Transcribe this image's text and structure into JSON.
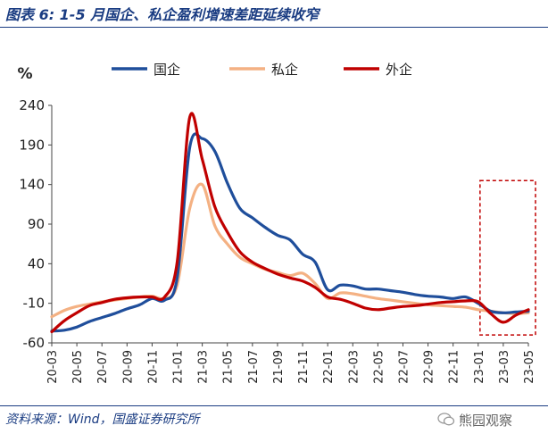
{
  "header": {
    "title": "图表 6: 1-5 月国企、私企盈利增速差距延续收窄"
  },
  "footer": {
    "source": "资料来源：Wind，国盛证券研究所",
    "watermark": "熊园观察"
  },
  "chart_data": {
    "type": "line",
    "ylabel": "%",
    "ylim": [
      -60,
      240
    ],
    "yticks": [
      -60,
      -10,
      40,
      90,
      140,
      190,
      240
    ],
    "xticks": [
      "20-03",
      "20-05",
      "20-07",
      "20-09",
      "20-11",
      "21-01",
      "21-03",
      "21-05",
      "21-07",
      "21-09",
      "21-11",
      "22-01",
      "22-03",
      "22-05",
      "22-07",
      "22-09",
      "22-11",
      "23-01",
      "23-03",
      "23-05"
    ],
    "legend_position": "top",
    "highlight_box": {
      "from": "23-02",
      "to": "23-05",
      "style": "dashed",
      "color": "#c00000"
    },
    "series": [
      {
        "name": "国企",
        "color": "#1f4e9b",
        "points": [
          [
            "20-03",
            -45
          ],
          [
            "20-04",
            -44
          ],
          [
            "20-05",
            -40
          ],
          [
            "20-06",
            -33
          ],
          [
            "20-07",
            -28
          ],
          [
            "20-08",
            -23
          ],
          [
            "20-09",
            -17
          ],
          [
            "20-10",
            -12
          ],
          [
            "20-11",
            -4
          ],
          [
            "20-12",
            -6
          ],
          [
            "21-01",
            22
          ],
          [
            "21-02",
            187
          ],
          [
            "21-03",
            198
          ],
          [
            "21-04",
            182
          ],
          [
            "21-05",
            142
          ],
          [
            "21-06",
            110
          ],
          [
            "21-07",
            98
          ],
          [
            "21-08",
            86
          ],
          [
            "21-09",
            76
          ],
          [
            "21-10",
            70
          ],
          [
            "21-11",
            52
          ],
          [
            "21-12",
            42
          ],
          [
            "22-01",
            7
          ],
          [
            "22-02",
            13
          ],
          [
            "22-03",
            12
          ],
          [
            "22-04",
            8
          ],
          [
            "22-05",
            8
          ],
          [
            "22-06",
            6
          ],
          [
            "22-07",
            4
          ],
          [
            "22-08",
            1
          ],
          [
            "22-09",
            -1
          ],
          [
            "22-10",
            -2
          ],
          [
            "22-11",
            -4
          ],
          [
            "22-12",
            -2
          ],
          [
            "23-01",
            -10
          ],
          [
            "23-02",
            -20
          ],
          [
            "23-03",
            -22
          ],
          [
            "23-04",
            -21
          ],
          [
            "23-05",
            -20
          ]
        ]
      },
      {
        "name": "私企",
        "color": "#f4b183",
        "points": [
          [
            "20-03",
            -27
          ],
          [
            "20-04",
            -19
          ],
          [
            "20-05",
            -14
          ],
          [
            "20-06",
            -11
          ],
          [
            "20-07",
            -8
          ],
          [
            "20-08",
            -6
          ],
          [
            "20-09",
            -4
          ],
          [
            "20-10",
            -2
          ],
          [
            "20-11",
            -1
          ],
          [
            "20-12",
            -4
          ],
          [
            "21-01",
            13
          ],
          [
            "21-02",
            110
          ],
          [
            "21-03",
            140
          ],
          [
            "21-04",
            88
          ],
          [
            "21-05",
            65
          ],
          [
            "21-06",
            48
          ],
          [
            "21-07",
            40
          ],
          [
            "21-08",
            33
          ],
          [
            "21-09",
            29
          ],
          [
            "21-10",
            25
          ],
          [
            "21-11",
            28
          ],
          [
            "21-12",
            15
          ],
          [
            "22-01",
            -4
          ],
          [
            "22-02",
            3
          ],
          [
            "22-03",
            2
          ],
          [
            "22-04",
            -1
          ],
          [
            "22-05",
            -4
          ],
          [
            "22-06",
            -6
          ],
          [
            "22-07",
            -8
          ],
          [
            "22-08",
            -10
          ],
          [
            "22-09",
            -12
          ],
          [
            "22-10",
            -13
          ],
          [
            "22-11",
            -14
          ],
          [
            "22-12",
            -15
          ],
          [
            "23-01",
            -18
          ],
          [
            "23-02",
            -20
          ],
          [
            "23-03",
            -22
          ],
          [
            "23-04",
            -23
          ],
          [
            "23-05",
            -22
          ]
        ]
      },
      {
        "name": "外企",
        "color": "#c00000",
        "points": [
          [
            "20-03",
            -46
          ],
          [
            "20-04",
            -32
          ],
          [
            "20-05",
            -22
          ],
          [
            "20-06",
            -13
          ],
          [
            "20-07",
            -9
          ],
          [
            "20-08",
            -5
          ],
          [
            "20-09",
            -3
          ],
          [
            "20-10",
            -2
          ],
          [
            "20-11",
            -2
          ],
          [
            "20-12",
            -2
          ],
          [
            "21-01",
            42
          ],
          [
            "21-02",
            225
          ],
          [
            "21-03",
            172
          ],
          [
            "21-04",
            112
          ],
          [
            "21-05",
            80
          ],
          [
            "21-06",
            55
          ],
          [
            "21-07",
            42
          ],
          [
            "21-08",
            34
          ],
          [
            "21-09",
            27
          ],
          [
            "21-10",
            22
          ],
          [
            "21-11",
            18
          ],
          [
            "21-12",
            10
          ],
          [
            "22-01",
            -2
          ],
          [
            "22-02",
            -5
          ],
          [
            "22-03",
            -10
          ],
          [
            "22-04",
            -16
          ],
          [
            "22-05",
            -18
          ],
          [
            "22-06",
            -16
          ],
          [
            "22-07",
            -14
          ],
          [
            "22-08",
            -13
          ],
          [
            "22-09",
            -11
          ],
          [
            "22-10",
            -9
          ],
          [
            "22-11",
            -8
          ],
          [
            "22-12",
            -7
          ],
          [
            "23-01",
            -8
          ],
          [
            "23-02",
            -23
          ],
          [
            "23-03",
            -34
          ],
          [
            "23-04",
            -25
          ],
          [
            "23-05",
            -18
          ]
        ]
      }
    ]
  }
}
